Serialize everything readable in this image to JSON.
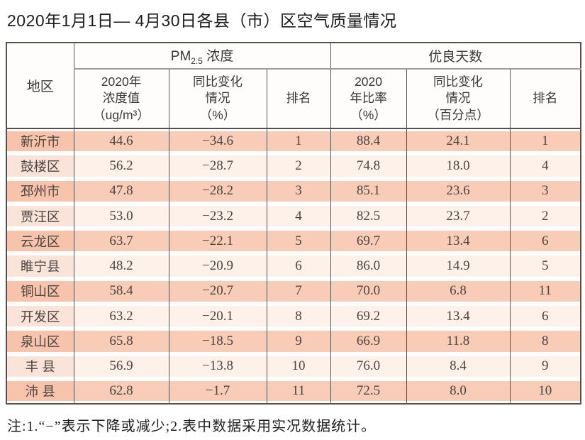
{
  "page": {
    "title": "2020年1月1日— 4月30日各县（市）区空气质量情况",
    "note": "注:1.“−”表示下降或减少;2.表中数据采用实况数据统计。"
  },
  "table": {
    "corner_header": "地区",
    "groups": {
      "pm": {
        "prefix": "PM",
        "sub": "2.5",
        "suffix": " 浓度"
      },
      "days": {
        "label": "优良天数"
      }
    },
    "sub_headers": {
      "pm_value": "2020年\n浓度值\n（ug/m³）",
      "pm_change": "同比变化\n情况\n（%）",
      "pm_rank": "排名",
      "days_ratio": "2020\n年比率\n（%）",
      "days_change": "同比变化\n情况\n（百分点）",
      "days_rank": "排名"
    },
    "rows": [
      {
        "region": "新沂市",
        "pm_value": "44.6",
        "pm_change": "−34.6",
        "pm_rank": "1",
        "days_ratio": "88.4",
        "days_change": "24.1",
        "days_rank": "1"
      },
      {
        "region": "鼓楼区",
        "pm_value": "56.2",
        "pm_change": "−28.7",
        "pm_rank": "2",
        "days_ratio": "74.8",
        "days_change": "18.0",
        "days_rank": "4"
      },
      {
        "region": "邳州市",
        "pm_value": "47.8",
        "pm_change": "−28.2",
        "pm_rank": "3",
        "days_ratio": "85.1",
        "days_change": "23.6",
        "days_rank": "3"
      },
      {
        "region": "贾汪区",
        "pm_value": "53.0",
        "pm_change": "−23.2",
        "pm_rank": "4",
        "days_ratio": "82.5",
        "days_change": "23.7",
        "days_rank": "2"
      },
      {
        "region": "云龙区",
        "pm_value": "63.7",
        "pm_change": "−22.1",
        "pm_rank": "5",
        "days_ratio": "69.7",
        "days_change": "13.4",
        "days_rank": "6"
      },
      {
        "region": "睢宁县",
        "pm_value": "48.2",
        "pm_change": "−20.9",
        "pm_rank": "6",
        "days_ratio": "86.0",
        "days_change": "14.9",
        "days_rank": "5"
      },
      {
        "region": "铜山区",
        "pm_value": "58.4",
        "pm_change": "−20.7",
        "pm_rank": "7",
        "days_ratio": "70.0",
        "days_change": "6.8",
        "days_rank": "11"
      },
      {
        "region": "开发区",
        "pm_value": "63.2",
        "pm_change": "−20.1",
        "pm_rank": "8",
        "days_ratio": "69.2",
        "days_change": "13.4",
        "days_rank": "6"
      },
      {
        "region": "泉山区",
        "pm_value": "65.8",
        "pm_change": "−18.5",
        "pm_rank": "9",
        "days_ratio": "66.9",
        "days_change": "11.8",
        "days_rank": "8"
      },
      {
        "region": "丰 县",
        "pm_value": "56.9",
        "pm_change": "−13.8",
        "pm_rank": "10",
        "days_ratio": "76.0",
        "days_change": "8.4",
        "days_rank": "9"
      },
      {
        "region": "沛 县",
        "pm_value": "62.8",
        "pm_change": "−1.7",
        "pm_rank": "11",
        "days_ratio": "72.5",
        "days_change": "8.0",
        "days_rank": "10"
      }
    ]
  },
  "colors": {
    "stripe_dark": "#f8ccb6",
    "stripe_light": "#fdf1ea",
    "region_dark": "#f7c3ab",
    "region_light": "#fae3d9",
    "grid": "#55504c",
    "header_divider": "#a39a94"
  }
}
